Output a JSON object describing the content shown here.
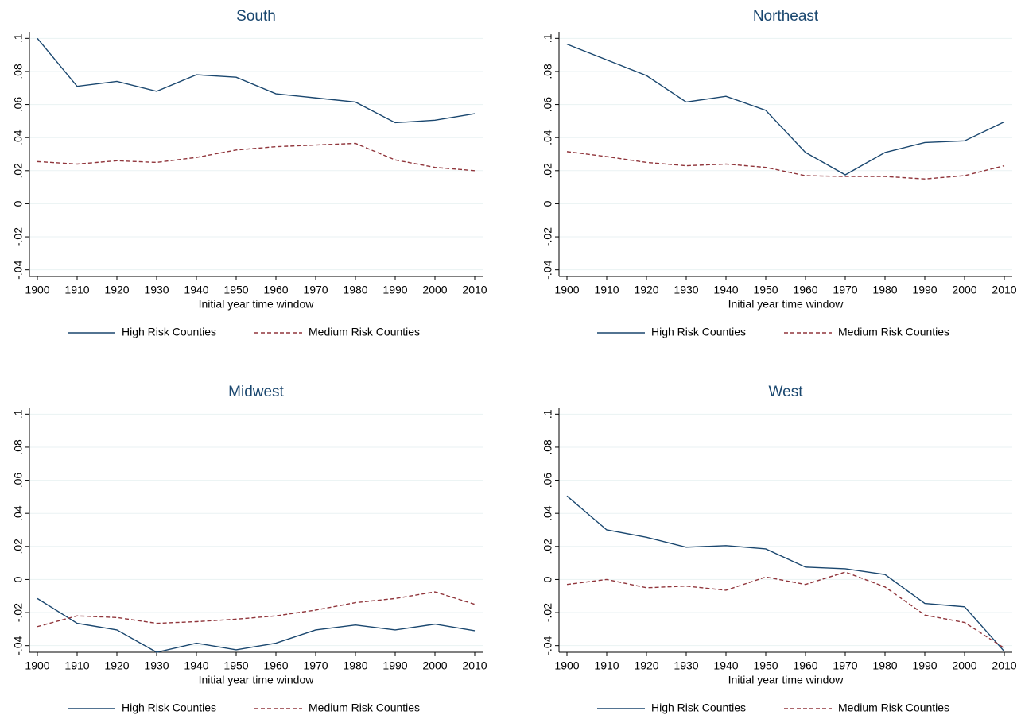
{
  "chart_data": [
    {
      "type": "line",
      "title": "South",
      "x_label": "Initial year time window",
      "x": [
        1900,
        1910,
        1920,
        1930,
        1940,
        1950,
        1960,
        1970,
        1980,
        1990,
        2000,
        2010
      ],
      "series": [
        {
          "name": "High Risk Counties",
          "color": "#1a476f",
          "line_style": "solid",
          "values": [
            0.1,
            0.071,
            0.074,
            0.068,
            0.078,
            0.0765,
            0.0665,
            0.064,
            0.0615,
            0.049,
            0.0505,
            0.0545
          ]
        },
        {
          "name": "Medium Risk Counties",
          "color": "#90353b",
          "line_style": "dashed",
          "values": [
            0.0255,
            0.024,
            0.026,
            0.025,
            0.028,
            0.0325,
            0.0345,
            0.0355,
            0.0365,
            0.0265,
            0.022,
            0.02
          ]
        }
      ],
      "xlim": [
        1898,
        2012
      ],
      "ylim": [
        -0.044,
        0.104
      ],
      "xticks": [
        1900,
        1910,
        1920,
        1930,
        1940,
        1950,
        1960,
        1970,
        1980,
        1990,
        2000,
        2010
      ],
      "yticks": [
        {
          "value": -0.04,
          "label": "-.04"
        },
        {
          "value": -0.02,
          "label": "-.02"
        },
        0,
        {
          "value": 0.02,
          "label": ".02"
        },
        {
          "value": 0.04,
          "label": ".04"
        },
        {
          "value": 0.06,
          "label": ".06"
        },
        {
          "value": 0.08,
          "label": ".08"
        },
        {
          "value": 0.1,
          "label": ".1"
        }
      ],
      "grid": true,
      "legend": "bottom"
    },
    {
      "type": "line",
      "title": "Northeast",
      "x_label": "Initial year time window",
      "x": [
        1900,
        1910,
        1920,
        1930,
        1940,
        1950,
        1960,
        1970,
        1980,
        1990,
        2000,
        2010
      ],
      "series": [
        {
          "name": "High Risk Counties",
          "color": "#1a476f",
          "line_style": "solid",
          "values": [
            0.0965,
            0.087,
            0.0775,
            0.0615,
            0.065,
            0.0565,
            0.031,
            0.0175,
            0.031,
            0.037,
            0.038,
            0.0495
          ]
        },
        {
          "name": "Medium Risk Counties",
          "color": "#90353b",
          "line_style": "dashed",
          "values": [
            0.0315,
            0.0285,
            0.025,
            0.023,
            0.024,
            0.022,
            0.017,
            0.0165,
            0.0165,
            0.015,
            0.017,
            0.023
          ]
        }
      ],
      "xlim": [
        1898,
        2012
      ],
      "ylim": [
        -0.044,
        0.104
      ],
      "xticks": [
        1900,
        1910,
        1920,
        1930,
        1940,
        1950,
        1960,
        1970,
        1980,
        1990,
        2000,
        2010
      ],
      "yticks": [
        {
          "value": -0.04,
          "label": "-.04"
        },
        {
          "value": -0.02,
          "label": "-.02"
        },
        0,
        {
          "value": 0.02,
          "label": ".02"
        },
        {
          "value": 0.04,
          "label": ".04"
        },
        {
          "value": 0.06,
          "label": ".06"
        },
        {
          "value": 0.08,
          "label": ".08"
        },
        {
          "value": 0.1,
          "label": ".1"
        }
      ],
      "grid": true,
      "legend": "bottom"
    },
    {
      "type": "line",
      "title": "Midwest",
      "x_label": "Initial year time window",
      "x": [
        1900,
        1910,
        1920,
        1930,
        1940,
        1950,
        1960,
        1970,
        1980,
        1990,
        2000,
        2010
      ],
      "series": [
        {
          "name": "High Risk Counties",
          "color": "#1a476f",
          "line_style": "solid",
          "values": [
            -0.0115,
            -0.0265,
            -0.0305,
            -0.044,
            -0.0385,
            -0.0425,
            -0.0385,
            -0.0305,
            -0.0275,
            -0.0305,
            -0.027,
            -0.031
          ]
        },
        {
          "name": "Medium Risk Counties",
          "color": "#90353b",
          "line_style": "dashed",
          "values": [
            -0.0285,
            -0.022,
            -0.023,
            -0.0265,
            -0.0255,
            -0.024,
            -0.022,
            -0.0185,
            -0.014,
            -0.0115,
            -0.0075,
            -0.015
          ]
        }
      ],
      "xlim": [
        1898,
        2012
      ],
      "ylim": [
        -0.044,
        0.104
      ],
      "xticks": [
        1900,
        1910,
        1920,
        1930,
        1940,
        1950,
        1960,
        1970,
        1980,
        1990,
        2000,
        2010
      ],
      "yticks": [
        {
          "value": -0.04,
          "label": "-.04"
        },
        {
          "value": -0.02,
          "label": "-.02"
        },
        0,
        {
          "value": 0.02,
          "label": ".02"
        },
        {
          "value": 0.04,
          "label": ".04"
        },
        {
          "value": 0.06,
          "label": ".06"
        },
        {
          "value": 0.08,
          "label": ".08"
        },
        {
          "value": 0.1,
          "label": ".1"
        }
      ],
      "grid": true,
      "legend": "bottom"
    },
    {
      "type": "line",
      "title": "West",
      "x_label": "Initial year time window",
      "x": [
        1900,
        1910,
        1920,
        1930,
        1940,
        1950,
        1960,
        1970,
        1980,
        1990,
        2000,
        2010
      ],
      "series": [
        {
          "name": "High Risk Counties",
          "color": "#1a476f",
          "line_style": "solid",
          "values": [
            0.0505,
            0.03,
            0.0255,
            0.0195,
            0.0205,
            0.0185,
            0.0075,
            0.0065,
            0.003,
            -0.0145,
            -0.0165,
            -0.0435
          ]
        },
        {
          "name": "Medium Risk Counties",
          "color": "#90353b",
          "line_style": "dashed",
          "values": [
            -0.003,
            0,
            -0.005,
            -0.004,
            -0.0065,
            0.0015,
            -0.003,
            0.0045,
            -0.0045,
            -0.0215,
            -0.026,
            -0.0415
          ]
        }
      ],
      "xlim": [
        1898,
        2012
      ],
      "ylim": [
        -0.044,
        0.104
      ],
      "xticks": [
        1900,
        1910,
        1920,
        1930,
        1940,
        1950,
        1960,
        1970,
        1980,
        1990,
        2000,
        2010
      ],
      "yticks": [
        {
          "value": -0.04,
          "label": "-.04"
        },
        {
          "value": -0.02,
          "label": "-.02"
        },
        0,
        {
          "value": 0.02,
          "label": ".02"
        },
        {
          "value": 0.04,
          "label": ".04"
        },
        {
          "value": 0.06,
          "label": ".06"
        },
        {
          "value": 0.08,
          "label": ".08"
        },
        {
          "value": 0.1,
          "label": ".1"
        }
      ],
      "grid": true,
      "legend": "bottom"
    }
  ]
}
